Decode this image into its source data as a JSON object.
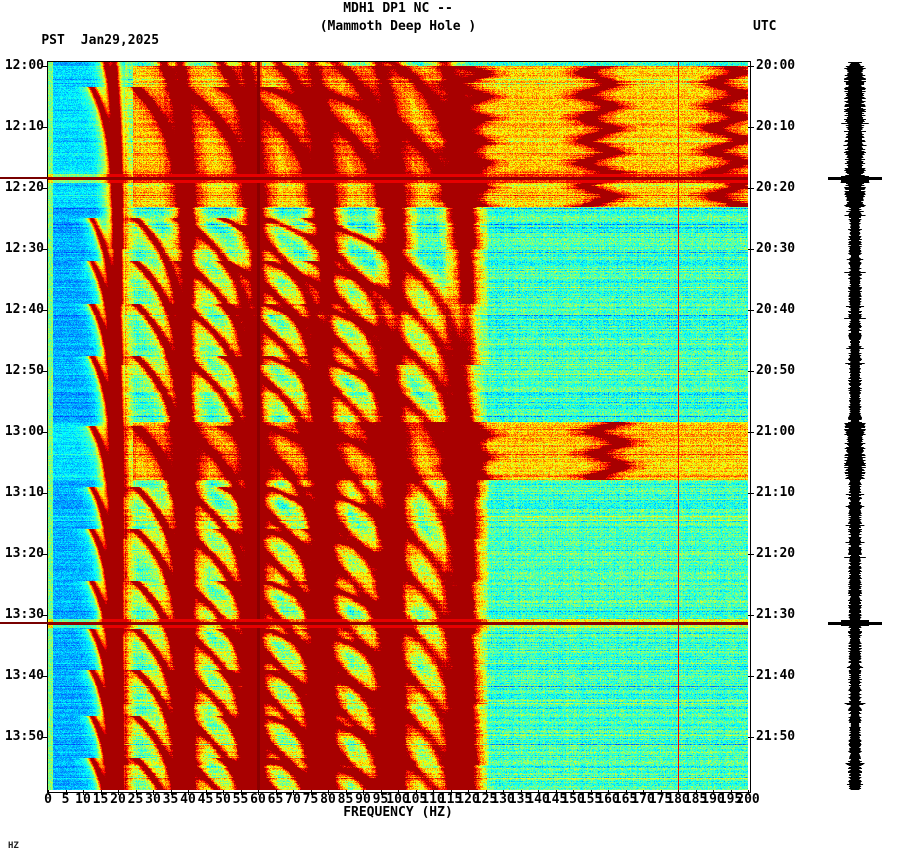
{
  "header": {
    "title": "MDH1 DP1 NC --",
    "subtitle": "(Mammoth Deep Hole )",
    "left_tz": "PST",
    "date": "Jan29,2025",
    "right_tz": "UTC"
  },
  "footer_note": "HZ",
  "colors": {
    "background": "#ffffff",
    "text": "#000000",
    "powerline": "#8b0000",
    "event_line": "#780000",
    "trace": "#000000",
    "colormap": "jet"
  },
  "chart_data": {
    "type": "heatmap",
    "subtype": "spectrogram",
    "station": "MDH1 DP1 NC",
    "station_name": "Mammoth Deep Hole",
    "date": "Jan29,2025",
    "xlabel": "FREQUENCY (HZ)",
    "freq_range_hz": [
      0,
      200
    ],
    "freq_tick_step_hz": 5,
    "freq_ticks": [
      0,
      5,
      10,
      15,
      20,
      25,
      30,
      35,
      40,
      45,
      50,
      55,
      60,
      65,
      70,
      75,
      80,
      85,
      90,
      95,
      100,
      105,
      110,
      115,
      120,
      125,
      130,
      135,
      140,
      145,
      150,
      155,
      160,
      165,
      170,
      175,
      180,
      185,
      190,
      195,
      200
    ],
    "time_axis_left": {
      "timezone": "PST",
      "ticks": [
        "12:00",
        "12:10",
        "12:20",
        "12:30",
        "12:40",
        "12:50",
        "13:00",
        "13:10",
        "13:20",
        "13:30",
        "13:40",
        "13:50"
      ]
    },
    "time_axis_right": {
      "timezone": "UTC",
      "ticks": [
        "20:00",
        "20:10",
        "20:20",
        "20:30",
        "20:40",
        "20:50",
        "21:00",
        "21:10",
        "21:20",
        "21:30",
        "21:40",
        "21:50"
      ]
    },
    "duration_minutes": 119,
    "features": {
      "powerline_hz": 60,
      "powerline_harmonic_hz": 180,
      "event_lines_min": [
        18.4,
        91.3
      ],
      "bright_bands": [
        {
          "start_min": 0,
          "end_min": 23.1,
          "tracer_hz": [
            120,
            157,
            194
          ]
        },
        {
          "start_min": 58.2,
          "end_min": 67.8,
          "tracer_hz": [
            120,
            160
          ]
        }
      ],
      "glide_starts_min": [
        -16,
        -7,
        3,
        24.5,
        31.5,
        38.5,
        47,
        58.5,
        68.5,
        75.5,
        84,
        91.8,
        98.5,
        106,
        113
      ],
      "glide_base_start_hz": 12,
      "glide_base_asymptote_hz": 20,
      "glide_harmonics": 6,
      "lowfreq_cutoff_hz": 22,
      "background_level": 0.43
    },
    "amplitude_trace": {
      "position": "right",
      "color": "#000000",
      "event_spikes_min": [
        18.4,
        91.3
      ]
    }
  }
}
